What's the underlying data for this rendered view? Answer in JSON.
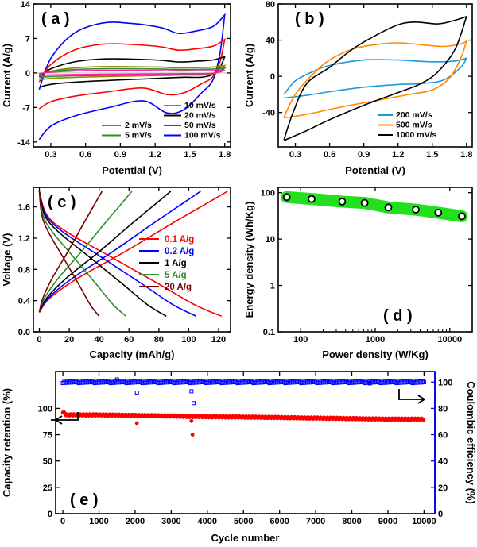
{
  "chart_data": [
    {
      "id": "a",
      "label": "( a )",
      "type": "line",
      "xlabel": "Potential (V)",
      "ylabel": "Current (A/g)",
      "xlim": [
        0.15,
        1.85
      ],
      "ylim": [
        -15,
        14
      ],
      "xticks": [
        0.3,
        0.6,
        0.9,
        1.2,
        1.5,
        1.8
      ],
      "yticks": [
        -14,
        -7,
        0,
        7,
        14
      ],
      "ytick_labels": [
        "-14",
        "-7",
        "0",
        "7",
        "14"
      ],
      "legend_placement": "bottom-right, two columns",
      "series": [
        {
          "name": "2 mV/s",
          "color": "#ff1ca8",
          "shape": "cv",
          "upper_max": 0.6,
          "lower_min": -0.5
        },
        {
          "name": "5 mV/s",
          "color": "#2e8b2e",
          "shape": "cv",
          "upper_max": 1.0,
          "lower_min": -0.9
        },
        {
          "name": "10 mV/s",
          "color": "#8a8a00",
          "shape": "cv",
          "upper_max": 1.5,
          "lower_min": -1.4
        },
        {
          "name": "20 mV/s",
          "color": "#000000",
          "shape": "cv",
          "upper_max": 3.3,
          "lower_min": -2.9
        },
        {
          "name": "50 mV/s",
          "color": "#ff0000",
          "shape": "cv",
          "upper_max": 6.8,
          "lower_min": -7.3
        },
        {
          "name": "100 mV/s",
          "color": "#0000ff",
          "shape": "cv",
          "upper_max": 11.8,
          "lower_min": -13.5
        }
      ],
      "legend_rows": [
        {
          "left": "",
          "right": "10 mV/s"
        },
        {
          "left": "",
          "right": "20 mV/s"
        },
        {
          "left": "2 mV/s",
          "right": "50 mV/s"
        },
        {
          "left": "5 mV/s",
          "right": "100 mV/s"
        }
      ]
    },
    {
      "id": "b",
      "label": "( b )",
      "type": "line",
      "xlabel": "Potential (V)",
      "ylabel": "Current (A/g)",
      "xlim": [
        0.15,
        1.85
      ],
      "ylim": [
        -78,
        80
      ],
      "xticks": [
        0.3,
        0.6,
        0.9,
        1.2,
        1.5,
        1.8
      ],
      "yticks": [
        -40,
        0,
        40,
        80
      ],
      "ytick_labels": [
        "-40",
        "0",
        "40",
        "80"
      ],
      "legend_placement": "bottom-right",
      "series": [
        {
          "name": "200 mV/s",
          "color": "#1a9ae0",
          "upper": [
            [
              0.2,
              -20
            ],
            [
              0.3,
              -5
            ],
            [
              0.45,
              5
            ],
            [
              0.6,
              12
            ],
            [
              0.9,
              18
            ],
            [
              1.2,
              18
            ],
            [
              1.5,
              16
            ],
            [
              1.7,
              17
            ],
            [
              1.8,
              20
            ]
          ],
          "lower": [
            [
              1.8,
              20
            ],
            [
              1.75,
              10
            ],
            [
              1.6,
              -4
            ],
            [
              1.4,
              -8
            ],
            [
              1.2,
              -9
            ],
            [
              0.9,
              -12
            ],
            [
              0.6,
              -17
            ],
            [
              0.4,
              -21
            ],
            [
              0.2,
              -24
            ]
          ]
        },
        {
          "name": "500 mV/s",
          "color": "#ff8a00",
          "upper": [
            [
              0.2,
              -45
            ],
            [
              0.3,
              -20
            ],
            [
              0.45,
              2
            ],
            [
              0.6,
              18
            ],
            [
              0.8,
              30
            ],
            [
              1.0,
              35
            ],
            [
              1.2,
              37
            ],
            [
              1.4,
              35
            ],
            [
              1.6,
              33
            ],
            [
              1.75,
              36
            ],
            [
              1.8,
              39
            ]
          ],
          "lower": [
            [
              1.8,
              39
            ],
            [
              1.75,
              20
            ],
            [
              1.65,
              -2
            ],
            [
              1.5,
              -15
            ],
            [
              1.3,
              -20
            ],
            [
              1.0,
              -27
            ],
            [
              0.7,
              -34
            ],
            [
              0.4,
              -42
            ],
            [
              0.2,
              -46
            ]
          ]
        },
        {
          "name": "1000 mV/s",
          "color": "#000000",
          "upper": [
            [
              0.2,
              -70
            ],
            [
              0.28,
              -40
            ],
            [
              0.4,
              -8
            ],
            [
              0.6,
              10
            ],
            [
              0.8,
              30
            ],
            [
              1.0,
              45
            ],
            [
              1.2,
              57
            ],
            [
              1.35,
              60
            ],
            [
              1.55,
              58
            ],
            [
              1.7,
              62
            ],
            [
              1.8,
              66
            ]
          ],
          "lower": [
            [
              1.8,
              66
            ],
            [
              1.7,
              30
            ],
            [
              1.55,
              5
            ],
            [
              1.4,
              -8
            ],
            [
              1.2,
              -18
            ],
            [
              0.9,
              -32
            ],
            [
              0.6,
              -48
            ],
            [
              0.4,
              -60
            ],
            [
              0.2,
              -71
            ]
          ]
        }
      ]
    },
    {
      "id": "c",
      "label": "( c )",
      "type": "line",
      "xlabel": "Capacity (mAh/g)",
      "ylabel": "Voltage (V)",
      "xlim": [
        -4,
        128
      ],
      "ylim": [
        0.0,
        1.85
      ],
      "xticks": [
        0,
        20,
        40,
        60,
        80,
        100,
        120
      ],
      "yticks": [
        0.0,
        0.4,
        0.8,
        1.2,
        1.6
      ],
      "ytick_labels": [
        "0.0",
        "0.4",
        "0.8",
        "1.2",
        "1.6"
      ],
      "legend_placement": "center-right",
      "series": [
        {
          "name": "0.1 A/g",
          "color": "#ff0000",
          "charge_end": 126,
          "discharge_end": 122
        },
        {
          "name": "0.2 A/g",
          "color": "#0000ff",
          "charge_end": 108,
          "discharge_end": 105
        },
        {
          "name": "1 A/g",
          "color": "#000000",
          "charge_end": 88,
          "discharge_end": 85
        },
        {
          "name": "5 A/g",
          "color": "#2e8b2e",
          "charge_end": 62,
          "discharge_end": 58
        },
        {
          "name": "20 A/g",
          "color": "#7a0000",
          "charge_end": 42,
          "discharge_end": 40
        }
      ]
    },
    {
      "id": "d",
      "label": "( d )",
      "type": "scatter",
      "xlabel": "Power density (W/Kg)",
      "ylabel": "Energy density (Wh/Kg)",
      "xscale": "log",
      "yscale": "log",
      "xlim": [
        50,
        20000
      ],
      "ylim": [
        0.1,
        130
      ],
      "xticks": [
        100,
        1000,
        10000
      ],
      "xtick_labels": [
        "100",
        "1000",
        "10000"
      ],
      "yticks": [
        0.1,
        1,
        10,
        100
      ],
      "ytick_labels": [
        "0.1",
        "1",
        "10",
        "100"
      ],
      "band_color": "#22e01b",
      "x": [
        65,
        140,
        360,
        720,
        1500,
        3500,
        7000,
        14500
      ],
      "y": [
        80,
        73,
        64,
        60,
        48,
        43,
        37,
        31
      ]
    },
    {
      "id": "e",
      "label": "( e )",
      "type": "scatter",
      "xlabel": "Cycle number",
      "ylabel": "Capacity retention (%)",
      "ylabel_right": "Coulombic efficiency (%)",
      "xlim": [
        -200,
        10300
      ],
      "ylim": [
        0,
        135
      ],
      "ylim_right": [
        0,
        108
      ],
      "xticks": [
        0,
        1000,
        2000,
        3000,
        4000,
        5000,
        6000,
        7000,
        8000,
        9000,
        10000
      ],
      "yticks": [
        0,
        25,
        50,
        75,
        100
      ],
      "yticks_right": [
        0,
        20,
        40,
        60,
        80,
        100
      ],
      "retention_color": "#ff0000",
      "efficiency_color": "#0000ff",
      "retention": {
        "cycles": [
          0,
          100,
          1000,
          2000,
          3000,
          3600,
          5000,
          6000,
          7000,
          8000,
          9000,
          10000
        ],
        "values": [
          97,
          94,
          94,
          93.5,
          93,
          92.5,
          92,
          91.5,
          91,
          90.5,
          90,
          90
        ]
      },
      "retention_outliers": {
        "cycles": [
          2050,
          3560,
          3590
        ],
        "values": [
          86,
          88,
          75
        ]
      },
      "efficiency": {
        "cycles": [
          0,
          2000,
          4000,
          6000,
          8000,
          10000
        ],
        "values": [
          100,
          100,
          100,
          100,
          100,
          100
        ]
      },
      "efficiency_outliers": {
        "cycles": [
          1500,
          2050,
          3560,
          3620,
          8500
        ],
        "values": [
          102,
          92,
          93,
          84,
          99
        ]
      }
    }
  ]
}
